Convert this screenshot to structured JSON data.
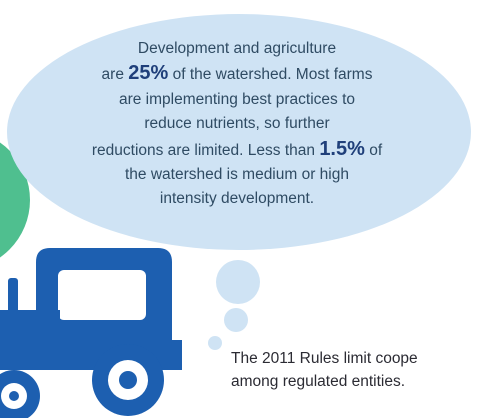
{
  "bubble": {
    "line1": "Development and agriculture",
    "line2_prefix": "are ",
    "line2_stat": "25%",
    "line2_suffix": " of the watershed. Most farms",
    "line3": "are implementing best practices to",
    "line4": "reduce nutrients, so further",
    "line5_prefix": "reductions are limited. Less than ",
    "line5_stat": "1.5%",
    "line5_suffix": " of",
    "line6": "the watershed is medium or high",
    "line7": "intensity development."
  },
  "caption": {
    "line1": "The 2011 Rules limit coope",
    "line2": "among regulated entities."
  },
  "icons": {
    "thought_bubble": "thought-bubble-icon",
    "tractor": "tractor-icon",
    "green_circle": "green-circle-icon"
  },
  "colors": {
    "bubble_fill": "#cfe3f4",
    "tractor_blue": "#1d5fb0",
    "green_accent": "#4fbf8f",
    "body_text": "#2f4b63",
    "stat_text": "#1f3f7a",
    "caption_text": "#2b2b33"
  }
}
